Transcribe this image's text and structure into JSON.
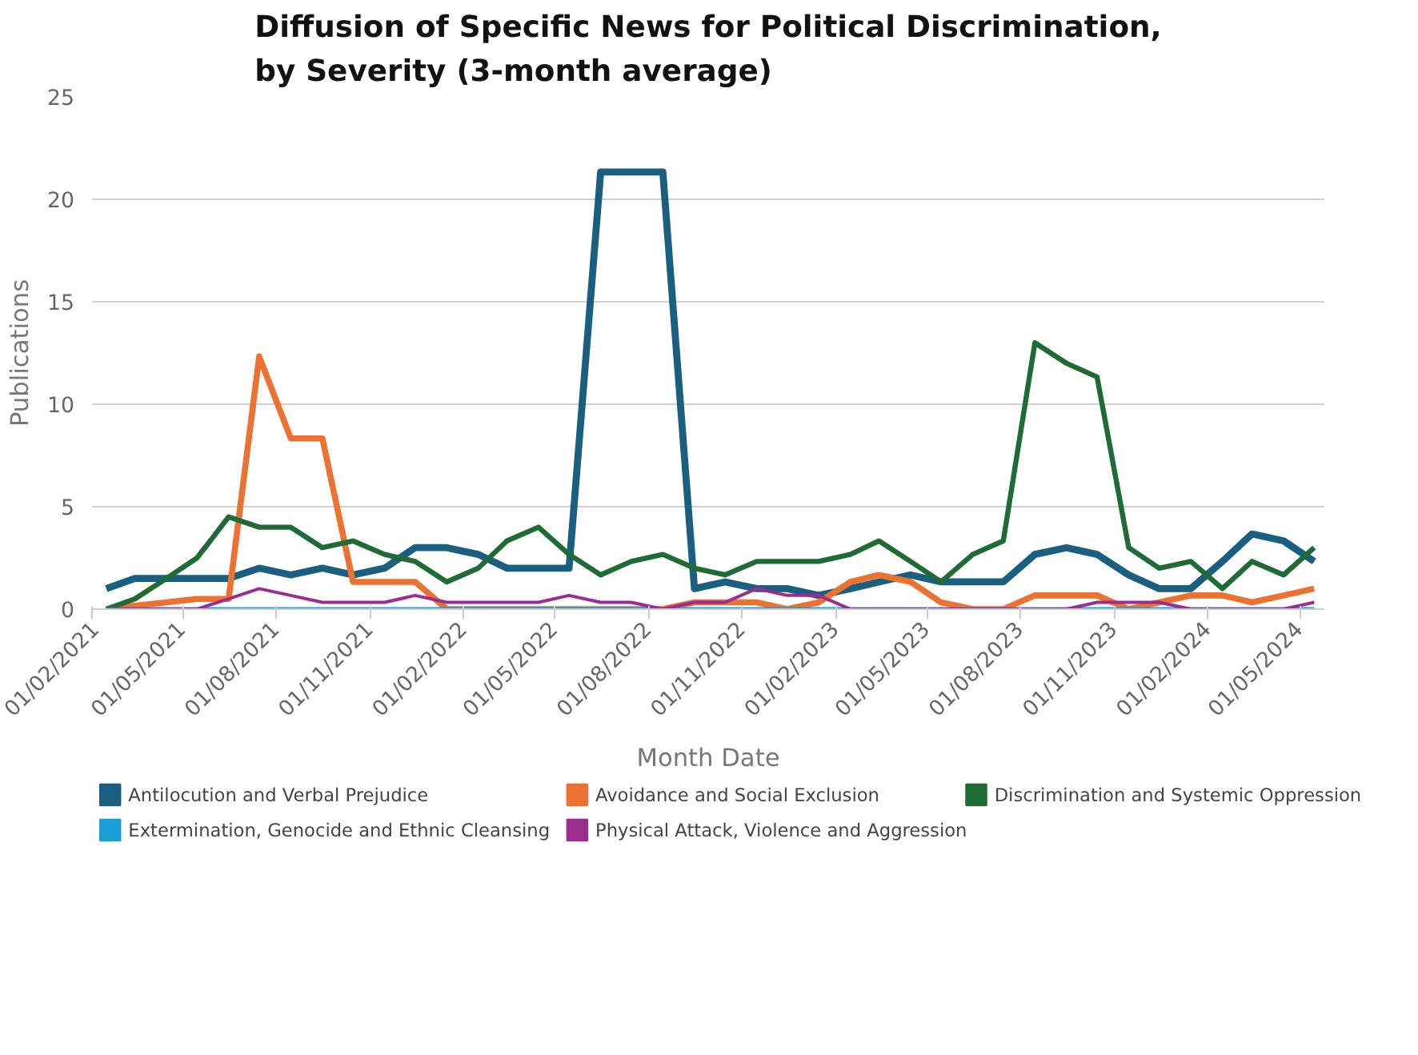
{
  "chart_data": {
    "type": "line",
    "title": "Diffusion of Specific News for Political Discrimination,\nby Severity (3-month average)",
    "xlabel": "Month Date",
    "ylabel": "Publications",
    "x": [
      "2021-02-15",
      "2021-03-15",
      "2021-04-15",
      "2021-05-15",
      "2021-06-15",
      "2021-07-15",
      "2021-08-15",
      "2021-09-15",
      "2021-10-15",
      "2021-11-15",
      "2021-12-15",
      "2022-01-15",
      "2022-02-15",
      "2022-03-15",
      "2022-04-15",
      "2022-05-15",
      "2022-06-15",
      "2022-07-15",
      "2022-08-15",
      "2022-09-15",
      "2022-10-15",
      "2022-11-15",
      "2022-12-15",
      "2023-01-15",
      "2023-02-15",
      "2023-03-15",
      "2023-04-15",
      "2023-05-15",
      "2023-06-15",
      "2023-07-15",
      "2023-08-15",
      "2023-09-15",
      "2023-10-15",
      "2023-11-15",
      "2023-12-15",
      "2024-01-15",
      "2024-02-15",
      "2024-03-15",
      "2024-04-15",
      "2024-05-15"
    ],
    "series": [
      {
        "name": "Antilocution and Verbal Prejudice",
        "color": "#1a5e80",
        "values": [
          1.0,
          1.5,
          1.5,
          1.5,
          1.5,
          2.0,
          1.67,
          2.0,
          1.67,
          2.0,
          3.0,
          3.0,
          2.67,
          2.0,
          2.0,
          2.0,
          21.33,
          21.33,
          21.33,
          1.0,
          1.33,
          1.0,
          1.0,
          0.67,
          1.0,
          1.33,
          1.67,
          1.33,
          1.33,
          1.33,
          2.67,
          3.0,
          2.67,
          1.67,
          1.0,
          1.0,
          2.33,
          3.67,
          3.33,
          2.33
        ]
      },
      {
        "name": "Avoidance and Social Exclusion",
        "color": "#ed7232",
        "values": [
          0,
          0.17,
          0.33,
          0.5,
          0.5,
          12.33,
          8.33,
          8.33,
          1.33,
          1.33,
          1.33,
          0,
          0,
          0,
          0,
          0,
          0,
          0,
          0,
          0.33,
          0.33,
          0.33,
          0,
          0.33,
          1.33,
          1.67,
          1.33,
          0.33,
          0,
          0,
          0.67,
          0.67,
          0.67,
          0,
          0.33,
          0.67,
          0.67,
          0.33,
          0.67,
          1.0
        ]
      },
      {
        "name": "Discrimination and Systemic Oppression",
        "color": "#1e6b35",
        "values": [
          0,
          0.5,
          1.5,
          2.5,
          4.5,
          4.0,
          4.0,
          3.0,
          3.33,
          2.67,
          2.33,
          1.33,
          2.0,
          3.33,
          4.0,
          2.67,
          1.67,
          2.33,
          2.67,
          2.0,
          1.67,
          2.33,
          2.33,
          2.33,
          2.67,
          3.33,
          2.33,
          1.33,
          2.67,
          3.33,
          13.0,
          12.0,
          11.33,
          3.0,
          2.0,
          2.33,
          1.0,
          2.33,
          1.67,
          3.0
        ]
      },
      {
        "name": "Extermination, Genocide and Ethnic Cleansing",
        "color": "#1a9ed8",
        "values": [
          0,
          0,
          0,
          0,
          0,
          0,
          0,
          0,
          0,
          0,
          0,
          0,
          0,
          0,
          0,
          0,
          0,
          0,
          0,
          0,
          0,
          0,
          0,
          0,
          0,
          0,
          0,
          0,
          0,
          0,
          0,
          0,
          0,
          0,
          0,
          0,
          0,
          0,
          0,
          0
        ]
      },
      {
        "name": "Physical Attack, Violence and Aggression",
        "color": "#9b2d91",
        "values": [
          0,
          0,
          0,
          0,
          0.5,
          1.0,
          0.67,
          0.33,
          0.33,
          0.33,
          0.67,
          0.33,
          0.33,
          0.33,
          0.33,
          0.67,
          0.33,
          0.33,
          0,
          0.33,
          0.33,
          1.0,
          0.67,
          0.67,
          0,
          0,
          0,
          0,
          0,
          0,
          0,
          0,
          0.33,
          0.33,
          0.33,
          0,
          0,
          0,
          0,
          0.33
        ]
      }
    ],
    "xlim": [
      "2021-02-01",
      "2024-05-25"
    ],
    "xticks": [
      {
        "value": "2021-02-01",
        "label": "01/02/2021"
      },
      {
        "value": "2021-05-01",
        "label": "01/05/2021"
      },
      {
        "value": "2021-08-01",
        "label": "01/08/2021"
      },
      {
        "value": "2021-11-01",
        "label": "01/11/2021"
      },
      {
        "value": "2022-02-01",
        "label": "01/02/2022"
      },
      {
        "value": "2022-05-01",
        "label": "01/05/2022"
      },
      {
        "value": "2022-08-01",
        "label": "01/08/2022"
      },
      {
        "value": "2022-11-01",
        "label": "01/11/2022"
      },
      {
        "value": "2023-02-01",
        "label": "01/02/2023"
      },
      {
        "value": "2023-05-01",
        "label": "01/05/2023"
      },
      {
        "value": "2023-08-01",
        "label": "01/08/2023"
      },
      {
        "value": "2023-11-01",
        "label": "01/11/2023"
      },
      {
        "value": "2024-02-01",
        "label": "01/02/2024"
      },
      {
        "value": "2024-05-01",
        "label": "01/05/2024"
      }
    ],
    "ylim": [
      0,
      25
    ],
    "yticks": [
      0,
      5,
      10,
      15,
      20,
      25
    ],
    "grid": "y",
    "legend": "bottom",
    "marker": "none",
    "line_style": "solid"
  }
}
